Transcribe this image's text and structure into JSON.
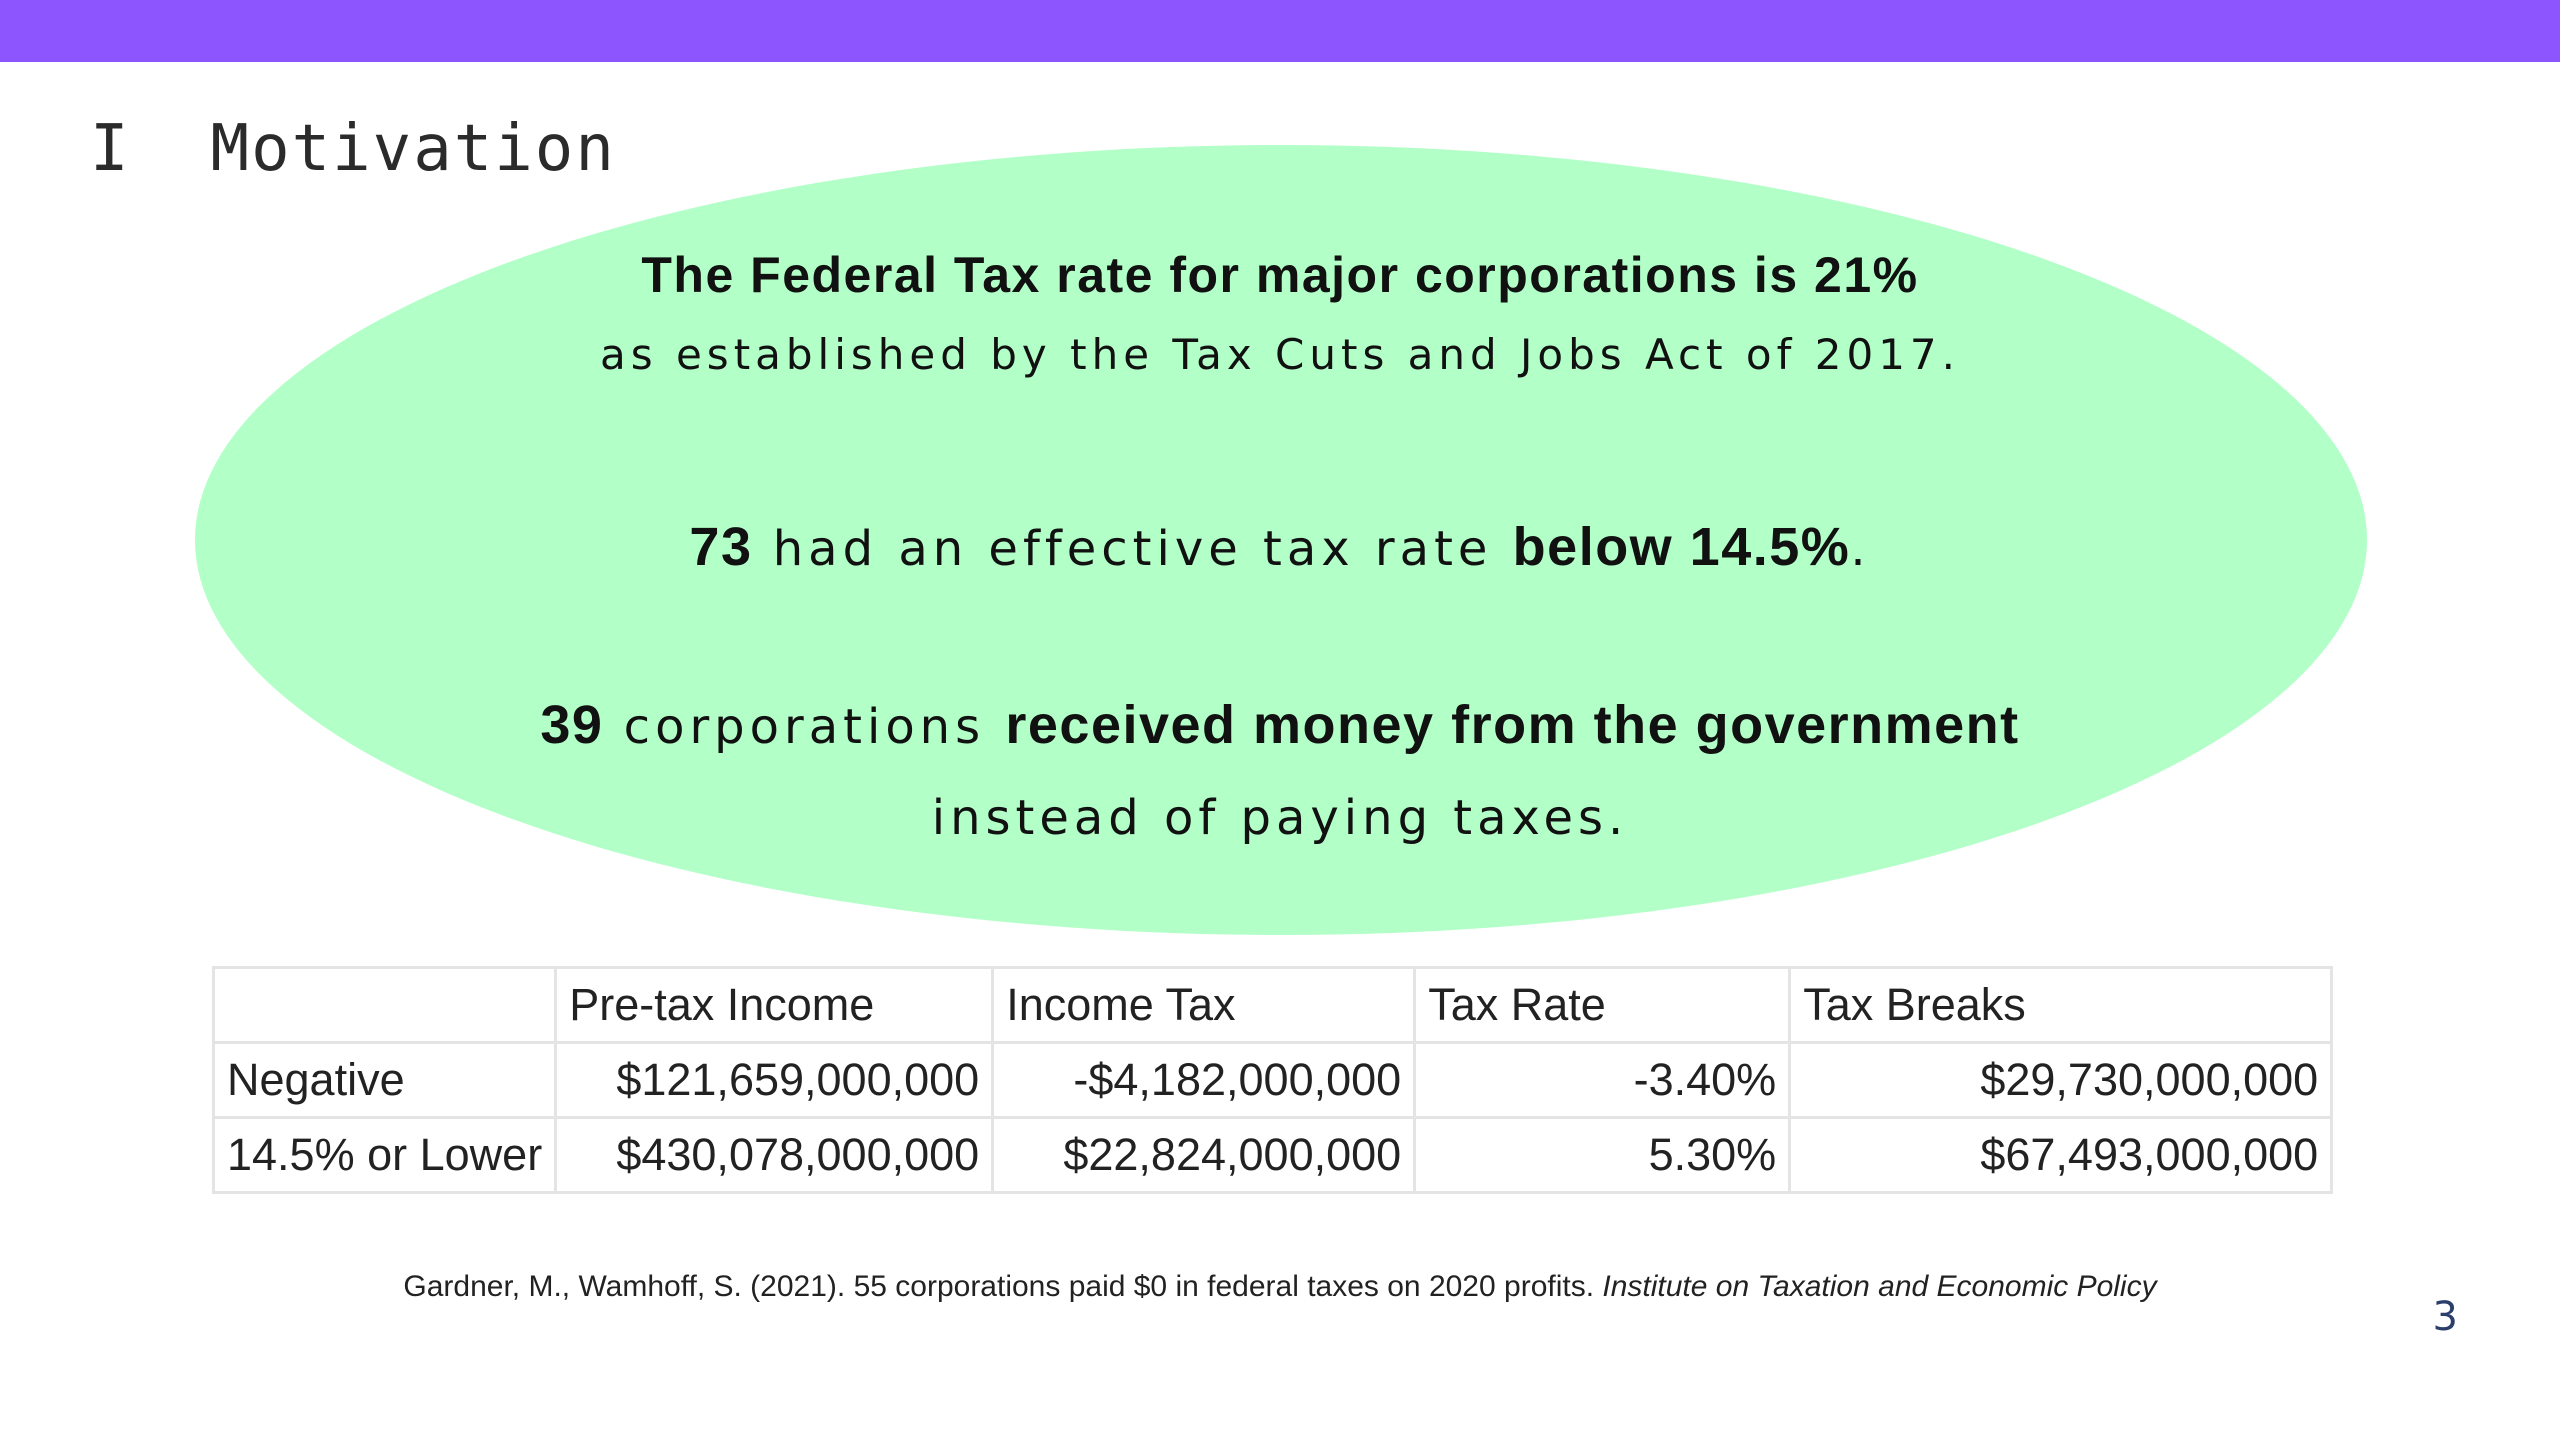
{
  "slide": {
    "section_number": "I",
    "section_title": "Motivation",
    "page_number": "3",
    "accent_color": "#8c55fe",
    "bubble_color": "#b2ffc8"
  },
  "bubble": {
    "line1": "The Federal Tax rate for major corporations is 21%",
    "line2": "as established by the Tax Cuts and Jobs Act of 2017.",
    "line3_num": "73",
    "line3_text": " had an effective tax rate ",
    "line3_bold": "below 14.5%",
    "line3_end": ".",
    "line4_num": "39",
    "line4_text": " corporations ",
    "line4_bold": "received money from the government",
    "line5": "instead of paying taxes."
  },
  "table": {
    "headers": [
      "",
      "Pre-tax Income",
      "Income Tax",
      "Tax Rate",
      "Tax Breaks"
    ],
    "rows": [
      [
        "Negative",
        "$121,659,000,000",
        "-$4,182,000,000",
        "-3.40%",
        "$29,730,000,000"
      ],
      [
        "14.5% or Lower",
        "$430,078,000,000",
        "$22,824,000,000",
        "5.30%",
        "$67,493,000,000"
      ]
    ]
  },
  "citation": {
    "text": "Gardner, M., Wamhoff, S. (2021). 55 corporations paid $0 in federal taxes on 2020 profits. ",
    "source": "Institute on Taxation and Economic Policy"
  }
}
